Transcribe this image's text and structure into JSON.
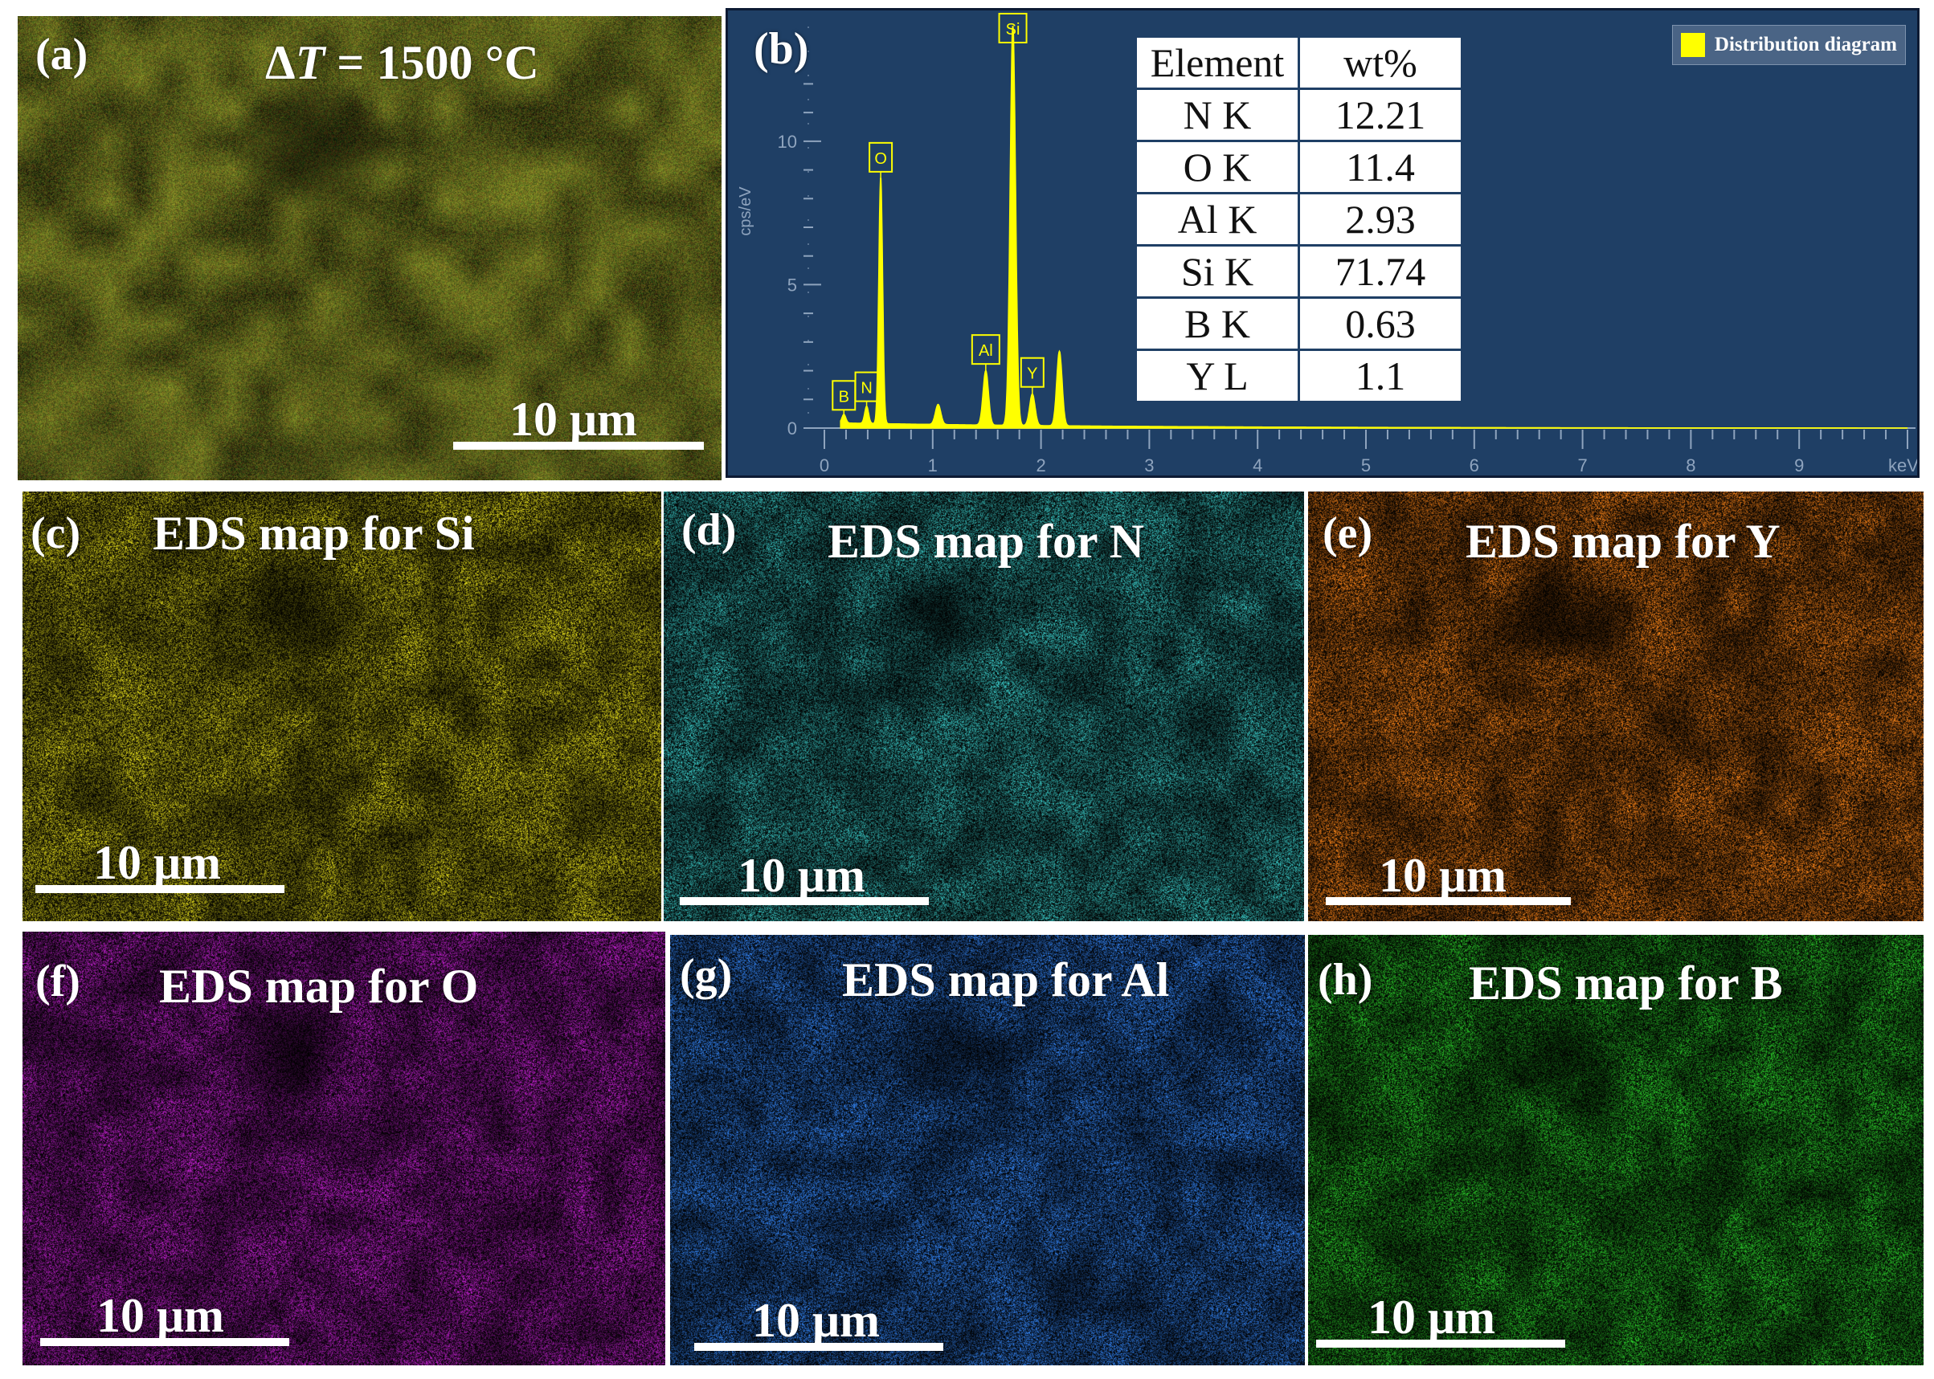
{
  "panels": {
    "a": {
      "label": "(a)",
      "title": "ΔT = 1500 °C",
      "title_var": "T",
      "scale_bar": "10 μm",
      "tint": "#6e7420"
    },
    "b": {
      "label": "(b)",
      "legend": "Distribution diagram",
      "table": {
        "headers": [
          "Element",
          "wt%"
        ],
        "rows": [
          [
            "N K",
            "12.21"
          ],
          [
            "O K",
            "11.4"
          ],
          [
            "Al K",
            "2.93"
          ],
          [
            "Si K",
            "71.74"
          ],
          [
            "B K",
            "0.63"
          ],
          [
            "Y L",
            "1.1"
          ]
        ]
      }
    },
    "c": {
      "label": "(c)",
      "title": "EDS map for Si",
      "scale_bar": "10 μm",
      "tint": "#b3ad16"
    },
    "d": {
      "label": "(d)",
      "title": "EDS map for N",
      "scale_bar": "10 μm",
      "tint": "#2fa2a0"
    },
    "e": {
      "label": "(e)",
      "title": "EDS map for Y",
      "scale_bar": "10 μm",
      "tint": "#c96a14"
    },
    "f": {
      "label": "(f)",
      "title": "EDS map for O",
      "scale_bar": "10 μm",
      "tint": "#9d1ba8"
    },
    "g": {
      "label": "(g)",
      "title": "EDS map for Al",
      "scale_bar": "10 μm",
      "tint": "#2a6cc8"
    },
    "h": {
      "label": "(h)",
      "title": "EDS map for B",
      "scale_bar": "10 μm",
      "tint": "#23a322"
    }
  },
  "chart_data": {
    "type": "line",
    "xlabel": "keV",
    "ylabel": "cps/eV",
    "xlim": [
      0,
      10
    ],
    "ylim": [
      0,
      14
    ],
    "x_ticks": [
      0,
      1,
      2,
      3,
      4,
      5,
      6,
      7,
      8,
      9
    ],
    "y_ticks": [
      0,
      5,
      10
    ],
    "peaks": [
      {
        "element": "B",
        "x": 0.18,
        "y": 0.3
      },
      {
        "element": "N",
        "x": 0.39,
        "y": 0.6
      },
      {
        "element": "O",
        "x": 0.52,
        "y": 8.6
      },
      {
        "element": "Al",
        "x": 1.49,
        "y": 1.9
      },
      {
        "element": "Si",
        "x": 1.74,
        "y": 14.0
      },
      {
        "element": "Y",
        "x": 1.92,
        "y": 1.1
      }
    ],
    "extra_peaks": [
      {
        "x": 1.05,
        "y": 0.7
      },
      {
        "x": 2.17,
        "y": 2.6
      }
    ],
    "color": "#ffff00",
    "background": "#1f3f65"
  }
}
